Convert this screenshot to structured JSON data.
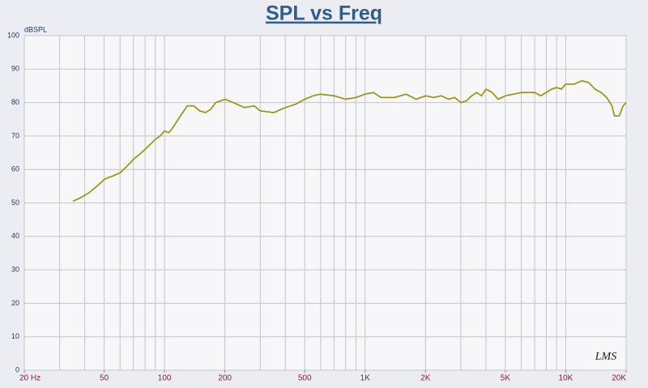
{
  "chart_data": {
    "type": "line",
    "title": "SPL vs Freq",
    "y_label": "dBSPL",
    "watermark": "LMS",
    "xscale": "log",
    "grid": true,
    "xlim": [
      20,
      20000
    ],
    "ylim": [
      0,
      100
    ],
    "xticks": [
      {
        "value": 20,
        "label": "20 Hz"
      },
      50,
      100,
      200,
      500,
      {
        "value": 1000,
        "label": "1K"
      },
      {
        "value": 2000,
        "label": "2K"
      },
      {
        "value": 5000,
        "label": "5K"
      },
      {
        "value": 10000,
        "label": "10K"
      },
      {
        "value": 20000,
        "label": "20K"
      }
    ],
    "xgrid": [
      20,
      30,
      40,
      50,
      60,
      70,
      80,
      90,
      100,
      200,
      300,
      400,
      500,
      600,
      700,
      800,
      900,
      1000,
      2000,
      3000,
      4000,
      5000,
      6000,
      7000,
      8000,
      9000,
      10000,
      20000
    ],
    "yticks": [
      0,
      10,
      20,
      30,
      40,
      50,
      60,
      70,
      80,
      90,
      100
    ],
    "series": [
      {
        "name": "SPL",
        "color": "#9a9a1e",
        "x": [
          35,
          38,
          42,
          45,
          48,
          50,
          52,
          55,
          60,
          65,
          70,
          75,
          80,
          85,
          90,
          95,
          100,
          105,
          110,
          120,
          130,
          140,
          150,
          160,
          170,
          180,
          200,
          220,
          250,
          280,
          300,
          350,
          400,
          450,
          500,
          550,
          600,
          700,
          800,
          900,
          1000,
          1100,
          1200,
          1400,
          1600,
          1800,
          2000,
          2200,
          2400,
          2600,
          2800,
          3000,
          3200,
          3400,
          3600,
          3800,
          4000,
          4300,
          4600,
          5000,
          5500,
          6000,
          7000,
          7500,
          8000,
          8500,
          9000,
          9500,
          10000,
          11000,
          12000,
          13000,
          14000,
          15000,
          16000,
          17000,
          17500,
          18500,
          19300,
          20000
        ],
        "values": [
          50.5,
          51.5,
          53,
          54.5,
          56,
          57,
          57.5,
          58,
          59,
          61,
          63,
          64.5,
          66,
          67.5,
          69,
          70,
          71.5,
          71,
          72.5,
          76,
          79,
          79,
          77.5,
          77,
          78,
          80,
          81,
          80,
          78.5,
          79,
          77.5,
          77,
          78.5,
          79.5,
          81,
          82,
          82.5,
          82,
          81,
          81.5,
          82.5,
          83,
          81.5,
          81.5,
          82.5,
          81,
          82,
          81.5,
          82,
          81,
          81.5,
          80,
          80.5,
          82,
          83,
          82,
          84,
          83,
          81,
          82,
          82.5,
          83,
          83,
          82,
          83,
          84,
          84.5,
          84,
          85.5,
          85.5,
          86.5,
          86,
          84,
          83,
          81.5,
          79,
          76,
          76,
          79,
          80
        ]
      }
    ]
  }
}
